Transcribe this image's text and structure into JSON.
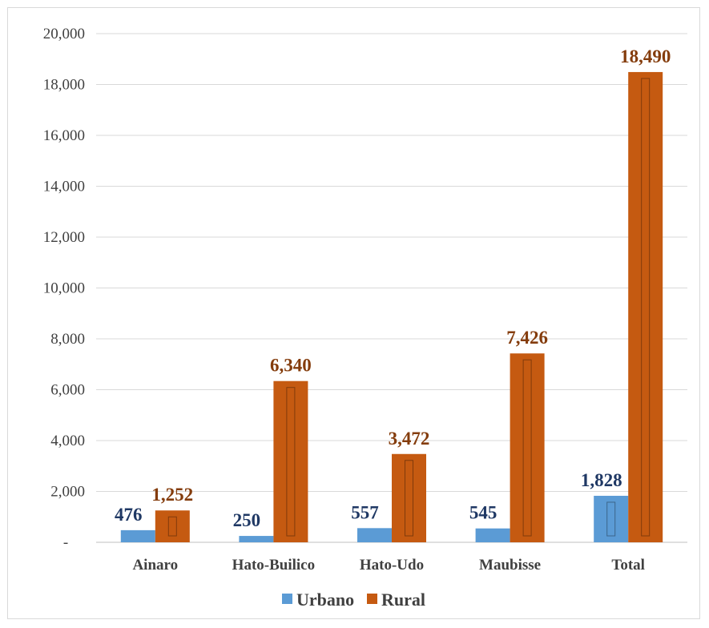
{
  "chart_data": {
    "type": "bar",
    "title": "",
    "xlabel": "",
    "ylabel": "",
    "categories": [
      "Ainaro",
      "Hato-Builico",
      "Hato-Udo",
      "Maubisse",
      "Total"
    ],
    "series": [
      {
        "name": "Urbano",
        "color": "#5b9bd5",
        "values": [
          476,
          250,
          557,
          545,
          1828
        ],
        "labels": [
          "476",
          "250",
          "557",
          "545",
          "1,828"
        ],
        "label_color": "#1f3864"
      },
      {
        "name": "Rural",
        "color": "#c55a11",
        "values": [
          1252,
          6340,
          3472,
          7426,
          18490
        ],
        "labels": [
          "1,252",
          "6,340",
          "3,472",
          "7,426",
          "18,490"
        ],
        "label_color": "#843c0c"
      }
    ],
    "ylim": [
      0,
      20000
    ],
    "yticks": [
      0,
      2000,
      4000,
      6000,
      8000,
      10000,
      12000,
      14000,
      16000,
      18000,
      20000
    ],
    "ytick_labels": [
      "-",
      "2,000",
      "4,000",
      "6,000",
      "8,000",
      "10,000",
      "12,000",
      "14,000",
      "16,000",
      "18,000",
      "20,000"
    ],
    "grid": true,
    "legend_position": "bottom"
  }
}
